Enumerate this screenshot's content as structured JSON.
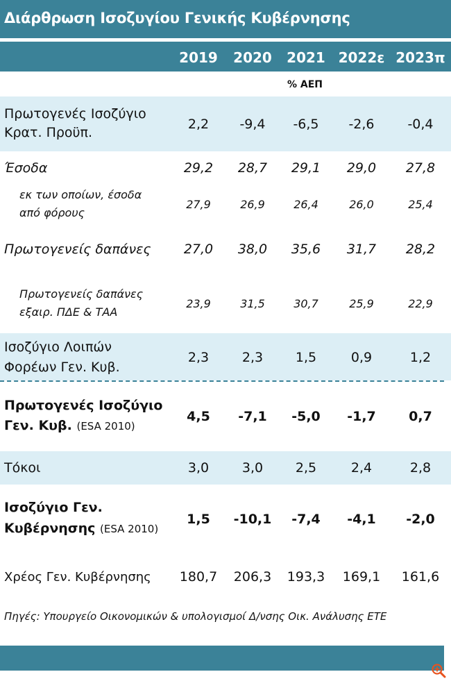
{
  "title": "Διάρθρωση Ισοζυγίου Γενικής Κυβέρνησης",
  "years": [
    "2019",
    "2020",
    "2021",
    "2022ε",
    "2023π"
  ],
  "unit": "% ΑΕΠ",
  "rows": [
    {
      "label1": "Πρωτογενές Ισοζύγιο",
      "label2": "Κρατ. Προϋπ.",
      "values": [
        "2,2",
        "-9,4",
        "-6,5",
        "-2,6",
        "-0,4"
      ]
    },
    {
      "label1": "Έσοδα",
      "values": [
        "29,2",
        "28,7",
        "29,1",
        "29,0",
        "27,8"
      ]
    },
    {
      "label1": "εκ των οποίων, έσοδα",
      "label2": "από φόρους",
      "values": [
        "27,9",
        "26,9",
        "26,4",
        "26,0",
        "25,4"
      ]
    },
    {
      "label1": "Πρωτογενείς δαπάνες",
      "values": [
        "27,0",
        "38,0",
        "35,6",
        "31,7",
        "28,2"
      ]
    },
    {
      "label1": "Πρωτογενείς δαπάνες",
      "label2": "εξαιρ. ΠΔΕ & ΤΑΑ",
      "values": [
        "23,9",
        "31,5",
        "30,7",
        "25,9",
        "22,9"
      ]
    },
    {
      "label1": "Ισοζύγιο Λοιπών",
      "label2": "Φορέων Γεν. Κυβ.",
      "values": [
        "2,3",
        "2,3",
        "1,5",
        "0,9",
        "1,2"
      ]
    },
    {
      "label1": "Πρωτογενές Ισοζύγιο",
      "label2": "Γεν. Κυβ.",
      "note": "(ESA 2010)",
      "values": [
        "4,5",
        "-7,1",
        "-5,0",
        "-1,7",
        "0,7"
      ]
    },
    {
      "label1": "Τόκοι",
      "values": [
        "3,0",
        "3,0",
        "2,5",
        "2,4",
        "2,8"
      ]
    },
    {
      "label1": "Ισοζύγιο Γεν.",
      "label2": "Κυβέρνησης",
      "note": "(ESA 2010)",
      "values": [
        "1,5",
        "-10,1",
        "-7,4",
        "-4,1",
        "-2,0"
      ]
    },
    {
      "label1": "Χρέος Γεν. Κυβέρνησης",
      "values": [
        "180,7",
        "206,3",
        "193,3",
        "169,1",
        "161,6"
      ]
    }
  ],
  "source": "Πηγές: Υπουργείο Οικονομικών & υπολογισμοί Δ/νσης Οικ. Ανάλυσης ΕΤΕ",
  "colors": {
    "header": "#3B8298",
    "band": "#DCEEF5",
    "zoom": "#E8531F"
  },
  "icons": {
    "zoom": "zoom-in-icon"
  }
}
